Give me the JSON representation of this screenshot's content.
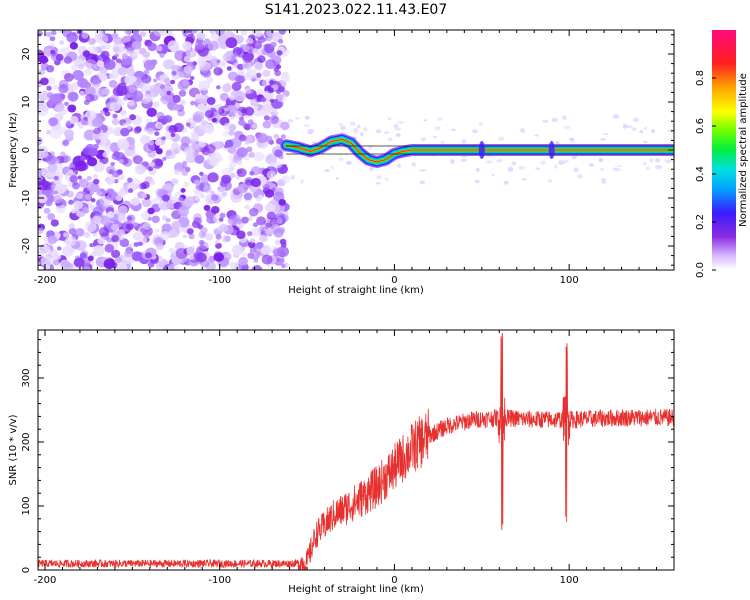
{
  "title": "S141.2023.022.11.43.E07",
  "chart_data": [
    {
      "type": "heatmap",
      "xlabel": "Height of straight line (km)",
      "ylabel": "Frequency (Hz)",
      "xlim": [
        -204,
        160
      ],
      "ylim": [
        -25,
        25
      ],
      "x_ticks": [
        -200,
        -100,
        0,
        100
      ],
      "y_ticks": [
        -20,
        -10,
        0,
        10,
        20
      ],
      "colorbar": {
        "label": "Normalized spectral amplitude",
        "ticks": [
          0.0,
          0.2,
          0.4,
          0.6,
          0.8
        ],
        "range": [
          0,
          1
        ]
      },
      "noise_region_x": [
        -204,
        -62
      ],
      "ridge": [
        {
          "x": -62,
          "y": 1.0
        },
        {
          "x": -55,
          "y": 0.5
        },
        {
          "x": -48,
          "y": -0.3
        },
        {
          "x": -42,
          "y": 0.5
        },
        {
          "x": -36,
          "y": 1.8
        },
        {
          "x": -30,
          "y": 2.2
        },
        {
          "x": -25,
          "y": 1.5
        },
        {
          "x": -20,
          "y": -0.5
        },
        {
          "x": -15,
          "y": -2.0
        },
        {
          "x": -10,
          "y": -2.5
        },
        {
          "x": -5,
          "y": -2.0
        },
        {
          "x": 0,
          "y": -0.8
        },
        {
          "x": 5,
          "y": -0.3
        },
        {
          "x": 10,
          "y": 0.0
        },
        {
          "x": 20,
          "y": 0.0
        },
        {
          "x": 60,
          "y": 0.0
        },
        {
          "x": 100,
          "y": 0.0
        },
        {
          "x": 160,
          "y": 0.0
        }
      ]
    },
    {
      "type": "line",
      "xlabel": "Height of straight line (km)",
      "ylabel": "SNR (10 * v/v)",
      "xlim": [
        -204,
        160
      ],
      "ylim": [
        0,
        375
      ],
      "x_ticks": [
        -200,
        -100,
        0,
        100
      ],
      "y_ticks": [
        0,
        100,
        200,
        300
      ],
      "series_color": "#e8312f",
      "trend": [
        {
          "x": -204,
          "y": 10
        },
        {
          "x": -60,
          "y": 10
        },
        {
          "x": -50,
          "y": 12
        },
        {
          "x": -45,
          "y": 55
        },
        {
          "x": -35,
          "y": 85
        },
        {
          "x": -20,
          "y": 110
        },
        {
          "x": -10,
          "y": 130
        },
        {
          "x": 0,
          "y": 160
        },
        {
          "x": 10,
          "y": 190
        },
        {
          "x": 20,
          "y": 210
        },
        {
          "x": 30,
          "y": 225
        },
        {
          "x": 45,
          "y": 235
        },
        {
          "x": 60,
          "y": 238
        },
        {
          "x": 80,
          "y": 235
        },
        {
          "x": 100,
          "y": 235
        },
        {
          "x": 130,
          "y": 238
        },
        {
          "x": 160,
          "y": 238
        }
      ],
      "spikes": [
        {
          "x": 61.5,
          "up": 375,
          "down": 60
        },
        {
          "x": 98.5,
          "up": 355,
          "down": 72
        }
      ]
    }
  ]
}
